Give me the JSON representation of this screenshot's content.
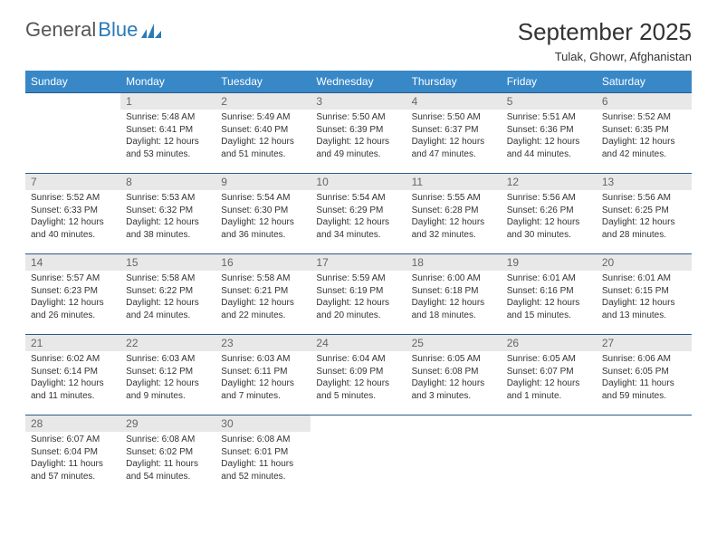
{
  "logo": {
    "text1": "General",
    "text2": "Blue"
  },
  "header": {
    "title": "September 2025",
    "location": "Tulak, Ghowr, Afghanistan"
  },
  "colors": {
    "header_bg": "#3888c8",
    "header_text": "#ffffff",
    "row_border": "#2a5a8a",
    "daynum_bg": "#e8e8e8",
    "logo_blue": "#2a7ab8"
  },
  "daysOfWeek": [
    "Sunday",
    "Monday",
    "Tuesday",
    "Wednesday",
    "Thursday",
    "Friday",
    "Saturday"
  ],
  "weeks": [
    [
      null,
      {
        "n": "1",
        "sr": "5:48 AM",
        "ss": "6:41 PM",
        "dl": "12 hours and 53 minutes."
      },
      {
        "n": "2",
        "sr": "5:49 AM",
        "ss": "6:40 PM",
        "dl": "12 hours and 51 minutes."
      },
      {
        "n": "3",
        "sr": "5:50 AM",
        "ss": "6:39 PM",
        "dl": "12 hours and 49 minutes."
      },
      {
        "n": "4",
        "sr": "5:50 AM",
        "ss": "6:37 PM",
        "dl": "12 hours and 47 minutes."
      },
      {
        "n": "5",
        "sr": "5:51 AM",
        "ss": "6:36 PM",
        "dl": "12 hours and 44 minutes."
      },
      {
        "n": "6",
        "sr": "5:52 AM",
        "ss": "6:35 PM",
        "dl": "12 hours and 42 minutes."
      }
    ],
    [
      {
        "n": "7",
        "sr": "5:52 AM",
        "ss": "6:33 PM",
        "dl": "12 hours and 40 minutes."
      },
      {
        "n": "8",
        "sr": "5:53 AM",
        "ss": "6:32 PM",
        "dl": "12 hours and 38 minutes."
      },
      {
        "n": "9",
        "sr": "5:54 AM",
        "ss": "6:30 PM",
        "dl": "12 hours and 36 minutes."
      },
      {
        "n": "10",
        "sr": "5:54 AM",
        "ss": "6:29 PM",
        "dl": "12 hours and 34 minutes."
      },
      {
        "n": "11",
        "sr": "5:55 AM",
        "ss": "6:28 PM",
        "dl": "12 hours and 32 minutes."
      },
      {
        "n": "12",
        "sr": "5:56 AM",
        "ss": "6:26 PM",
        "dl": "12 hours and 30 minutes."
      },
      {
        "n": "13",
        "sr": "5:56 AM",
        "ss": "6:25 PM",
        "dl": "12 hours and 28 minutes."
      }
    ],
    [
      {
        "n": "14",
        "sr": "5:57 AM",
        "ss": "6:23 PM",
        "dl": "12 hours and 26 minutes."
      },
      {
        "n": "15",
        "sr": "5:58 AM",
        "ss": "6:22 PM",
        "dl": "12 hours and 24 minutes."
      },
      {
        "n": "16",
        "sr": "5:58 AM",
        "ss": "6:21 PM",
        "dl": "12 hours and 22 minutes."
      },
      {
        "n": "17",
        "sr": "5:59 AM",
        "ss": "6:19 PM",
        "dl": "12 hours and 20 minutes."
      },
      {
        "n": "18",
        "sr": "6:00 AM",
        "ss": "6:18 PM",
        "dl": "12 hours and 18 minutes."
      },
      {
        "n": "19",
        "sr": "6:01 AM",
        "ss": "6:16 PM",
        "dl": "12 hours and 15 minutes."
      },
      {
        "n": "20",
        "sr": "6:01 AM",
        "ss": "6:15 PM",
        "dl": "12 hours and 13 minutes."
      }
    ],
    [
      {
        "n": "21",
        "sr": "6:02 AM",
        "ss": "6:14 PM",
        "dl": "12 hours and 11 minutes."
      },
      {
        "n": "22",
        "sr": "6:03 AM",
        "ss": "6:12 PM",
        "dl": "12 hours and 9 minutes."
      },
      {
        "n": "23",
        "sr": "6:03 AM",
        "ss": "6:11 PM",
        "dl": "12 hours and 7 minutes."
      },
      {
        "n": "24",
        "sr": "6:04 AM",
        "ss": "6:09 PM",
        "dl": "12 hours and 5 minutes."
      },
      {
        "n": "25",
        "sr": "6:05 AM",
        "ss": "6:08 PM",
        "dl": "12 hours and 3 minutes."
      },
      {
        "n": "26",
        "sr": "6:05 AM",
        "ss": "6:07 PM",
        "dl": "12 hours and 1 minute."
      },
      {
        "n": "27",
        "sr": "6:06 AM",
        "ss": "6:05 PM",
        "dl": "11 hours and 59 minutes."
      }
    ],
    [
      {
        "n": "28",
        "sr": "6:07 AM",
        "ss": "6:04 PM",
        "dl": "11 hours and 57 minutes."
      },
      {
        "n": "29",
        "sr": "6:08 AM",
        "ss": "6:02 PM",
        "dl": "11 hours and 54 minutes."
      },
      {
        "n": "30",
        "sr": "6:08 AM",
        "ss": "6:01 PM",
        "dl": "11 hours and 52 minutes."
      },
      null,
      null,
      null,
      null
    ]
  ],
  "labels": {
    "sunrise": "Sunrise:",
    "sunset": "Sunset:",
    "daylight": "Daylight:"
  }
}
